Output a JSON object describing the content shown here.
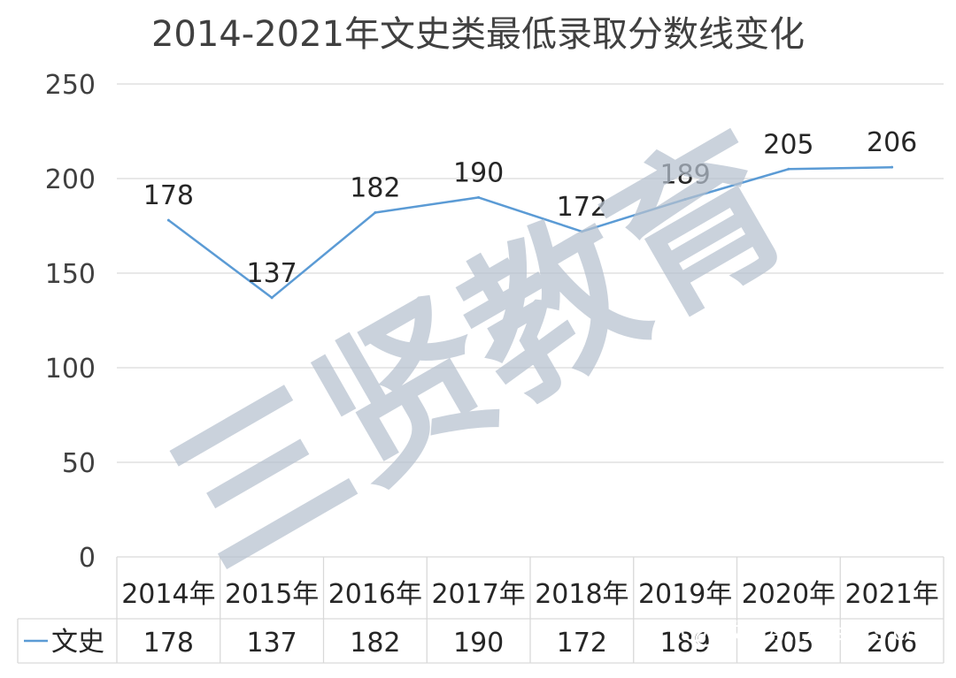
{
  "chart_data": {
    "type": "line",
    "title": "2014-2021年文史类最低录取分数线变化",
    "categories": [
      "2014年",
      "2015年",
      "2016年",
      "2017年",
      "2018年",
      "2019年",
      "2020年",
      "2021年"
    ],
    "series": [
      {
        "name": "文史",
        "values": [
          178,
          137,
          182,
          190,
          172,
          189,
          205,
          206
        ],
        "color": "#5b9bd5"
      }
    ],
    "yticks": [
      "0",
      "50",
      "100",
      "150",
      "200",
      "250"
    ],
    "ylim": [
      0,
      250
    ],
    "grid": true,
    "data_table": true,
    "data_labels": true
  },
  "watermark": {
    "text": "三贤教育"
  },
  "wechat": {
    "icon": "wechat-icon",
    "text": "微信号: zjzsbks.com"
  }
}
